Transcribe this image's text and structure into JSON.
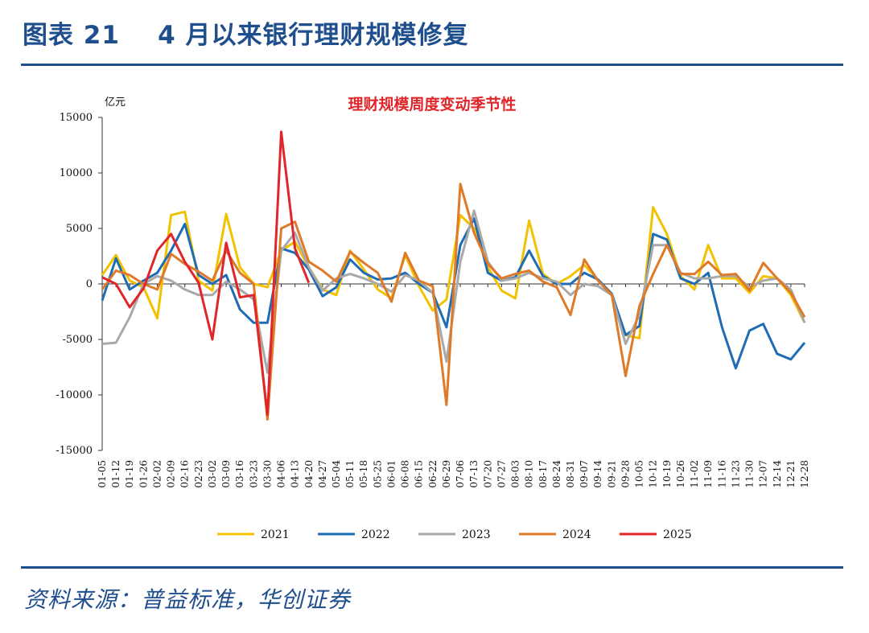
{
  "figure": {
    "title": "图表 21    4 月以来银行理财规模修复",
    "source": "资料来源：普益标准，华创证券"
  },
  "chart_data": {
    "type": "line",
    "title": "理财规模周度变动季节性",
    "ylabel": "亿元",
    "xlabel": "",
    "ylim": [
      -15000,
      15000
    ],
    "yticks": [
      15000,
      10000,
      5000,
      0,
      -5000,
      -10000,
      -15000
    ],
    "grid": false,
    "legend_position": "bottom",
    "title_color": "#e0262b",
    "categories": [
      "01-05",
      "01-12",
      "01-19",
      "01-26",
      "02-02",
      "02-09",
      "02-16",
      "02-23",
      "03-02",
      "03-09",
      "03-16",
      "03-23",
      "03-30",
      "04-06",
      "04-13",
      "04-20",
      "04-27",
      "05-04",
      "05-11",
      "05-18",
      "05-25",
      "06-01",
      "06-08",
      "06-15",
      "06-22",
      "06-29",
      "07-06",
      "07-13",
      "07-20",
      "07-27",
      "08-03",
      "08-10",
      "08-17",
      "08-24",
      "08-31",
      "09-07",
      "09-14",
      "09-21",
      "09-28",
      "10-05",
      "10-12",
      "10-19",
      "10-26",
      "11-02",
      "11-09",
      "11-16",
      "11-23",
      "11-30",
      "12-07",
      "12-14",
      "12-21",
      "12-28"
    ],
    "series": [
      {
        "name": "2021",
        "color": "#f2c200",
        "values": [
          800,
          2600,
          300,
          -300,
          -3100,
          6200,
          6500,
          300,
          -600,
          6300,
          1500,
          0,
          -300,
          3000,
          3800,
          1500,
          -500,
          -1000,
          3000,
          1300,
          -500,
          -1300,
          2600,
          -200,
          -2400,
          -1400,
          6200,
          5000,
          1500,
          -600,
          -1300,
          5700,
          900,
          0,
          700,
          1700,
          400,
          -1000,
          -4600,
          -4900,
          6900,
          4500,
          700,
          -500,
          3500,
          500,
          500,
          -800,
          700,
          500,
          -1000,
          -3500
        ]
      },
      {
        "name": "2022",
        "color": "#1f6cb5",
        "values": [
          -1500,
          2300,
          -500,
          300,
          1000,
          3000,
          5400,
          800,
          0,
          800,
          -2300,
          -3500,
          -3500,
          3200,
          2800,
          1300,
          -1100,
          -300,
          2200,
          1000,
          400,
          500,
          1000,
          0,
          -800,
          -3900,
          3500,
          5900,
          1000,
          300,
          600,
          3000,
          700,
          0,
          0,
          1000,
          400,
          -900,
          -4600,
          -3800,
          4500,
          4000,
          500,
          0,
          1000,
          -3900,
          -7600,
          -4200,
          -3600,
          -6300,
          -6800,
          -5300
        ]
      },
      {
        "name": "2023",
        "color": "#a9a9a9",
        "values": [
          -5400,
          -5300,
          -3000,
          0,
          700,
          300,
          -500,
          -1000,
          -1000,
          200,
          -500,
          -1400,
          -8000,
          3000,
          4600,
          1500,
          -600,
          500,
          900,
          500,
          0,
          -700,
          800,
          300,
          -800,
          -7000,
          2000,
          6600,
          2000,
          300,
          500,
          1000,
          500,
          200,
          -1000,
          0,
          -200,
          -1000,
          -5400,
          -2800,
          3500,
          3500,
          1000,
          500,
          500,
          700,
          700,
          -300,
          300,
          500,
          -500,
          -3500
        ]
      },
      {
        "name": "2024",
        "color": "#de7a28",
        "values": [
          -500,
          1200,
          800,
          0,
          -500,
          2700,
          1800,
          1100,
          300,
          3000,
          1000,
          0,
          -12200,
          5000,
          5600,
          2000,
          1200,
          200,
          2900,
          1900,
          1000,
          -1600,
          2800,
          300,
          -200,
          -10900,
          9000,
          4600,
          1800,
          500,
          900,
          1200,
          200,
          -300,
          -2800,
          2200,
          300,
          -1000,
          -8300,
          -2000,
          900,
          3500,
          900,
          900,
          2000,
          800,
          900,
          -600,
          1900,
          500,
          -800,
          -3000
        ]
      },
      {
        "name": "2025",
        "color": "#e0262b",
        "values": [
          600,
          0,
          -2100,
          -400,
          3000,
          4500,
          2000,
          100,
          -5000,
          3700,
          -1200,
          -1000,
          -11800,
          13700,
          3200,
          100,
          null,
          null,
          null,
          null,
          null,
          null,
          null,
          null,
          null,
          null,
          null,
          null,
          null,
          null,
          null,
          null,
          null,
          null,
          null,
          null,
          null,
          null,
          null,
          null,
          null,
          null,
          null,
          null,
          null,
          null,
          null,
          null,
          null,
          null,
          null,
          null
        ]
      }
    ]
  }
}
